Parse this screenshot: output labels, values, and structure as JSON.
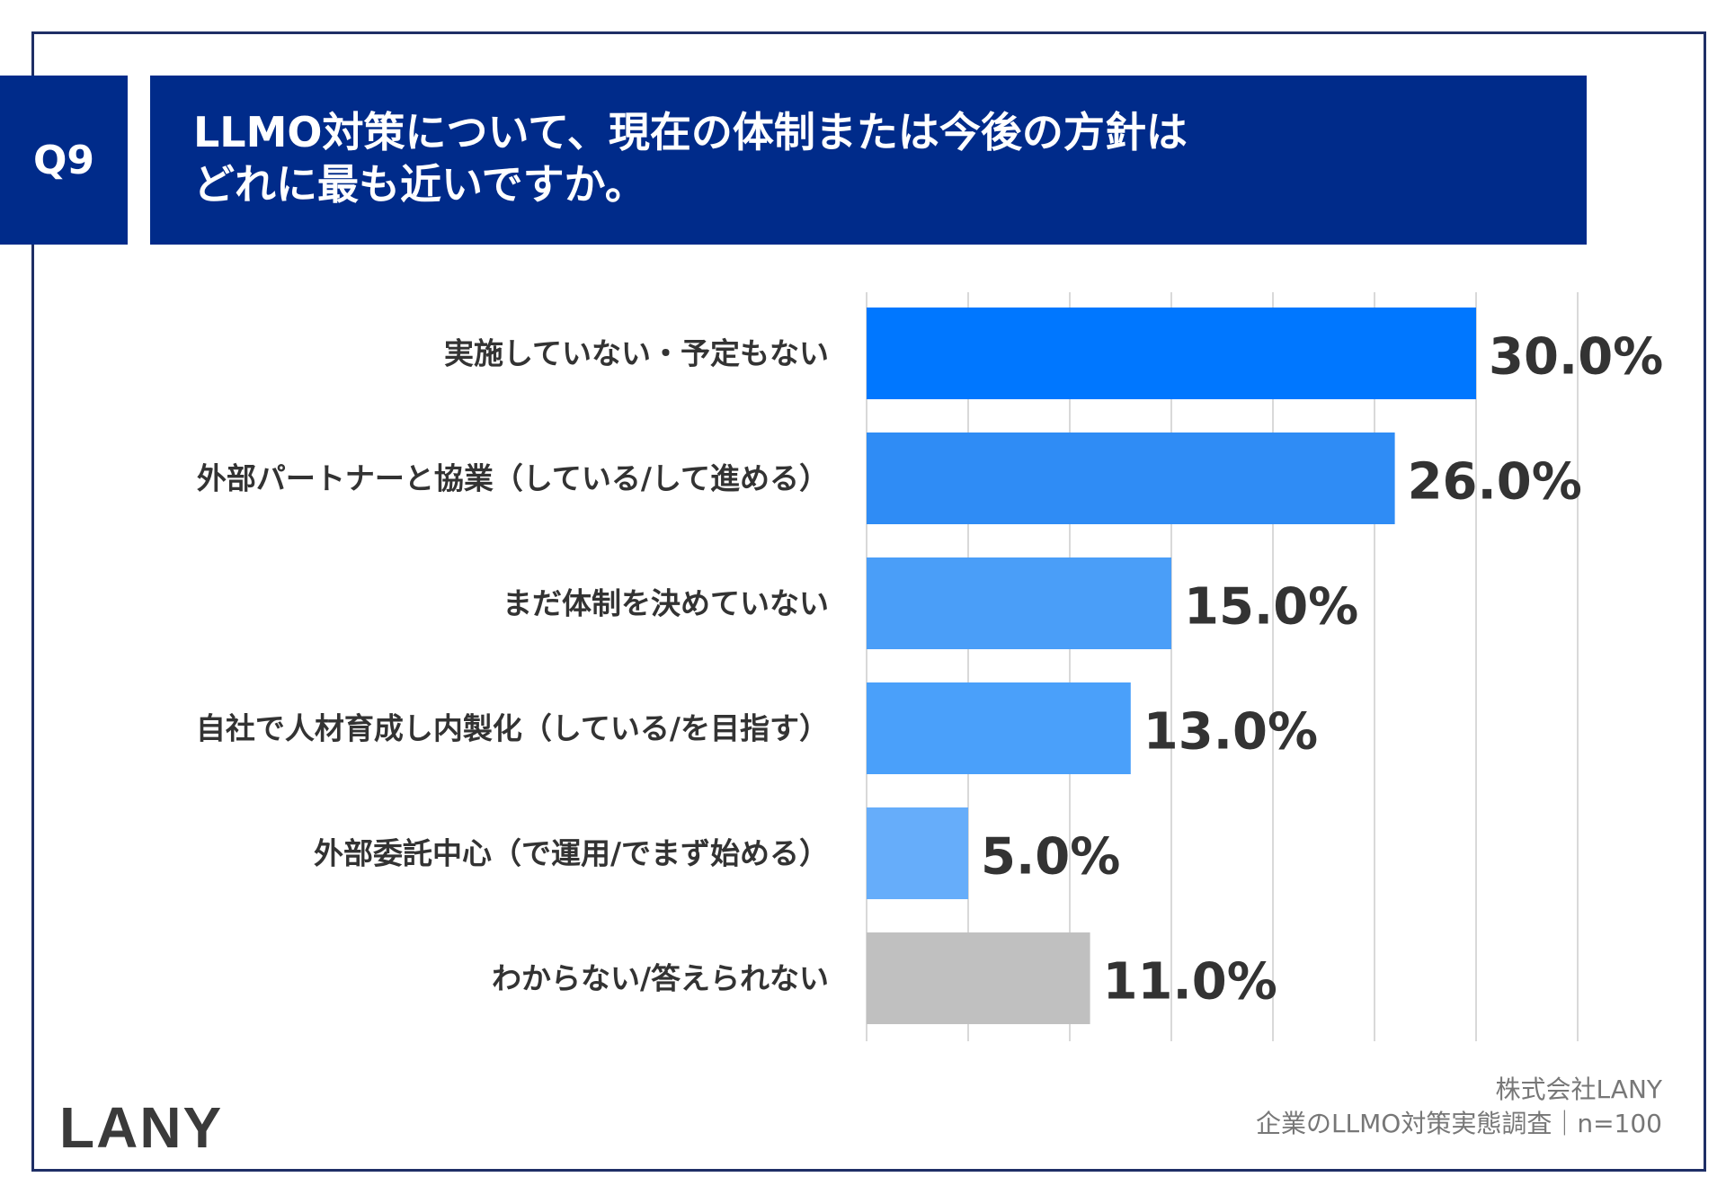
{
  "question": {
    "badge": "Q9",
    "title_line1": "LLMO対策について、現在の体制または今後の方針は",
    "title_line2": "どれに最も近いですか。"
  },
  "chart_data": {
    "type": "bar",
    "orientation": "horizontal",
    "categories": [
      "実施していない・予定もない",
      "外部パートナーと協業（している/して進める）",
      "まだ体制を決めていない",
      "自社で人材育成し内製化（している/を目指す）",
      "外部委託中心（で運用/でまず始める）",
      "わからない/答えられない"
    ],
    "values": [
      30.0,
      26.0,
      15.0,
      13.0,
      5.0,
      11.0
    ],
    "value_labels": [
      "30.0%",
      "26.0%",
      "15.0%",
      "13.0%",
      "5.0%",
      "11.0%"
    ],
    "bar_colors": [
      "#0077ff",
      "#2f8cf5",
      "#4a9ef8",
      "#4aa0fa",
      "#66adfa",
      "#c0c0c0"
    ],
    "xlim": [
      0,
      35
    ],
    "grid": true
  },
  "brand": {
    "logo": "LANY",
    "company": "株式会社LANY",
    "survey": "企業のLLMO対策実態調査｜n=100"
  }
}
